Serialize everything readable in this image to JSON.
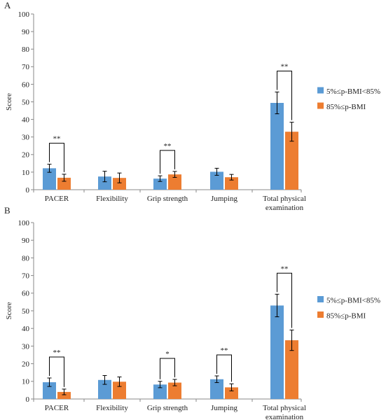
{
  "chart_data": [
    {
      "panel": "A",
      "type": "bar",
      "ylabel": "Score",
      "ylim": [
        0,
        100
      ],
      "yticks": [
        0,
        10,
        20,
        30,
        40,
        50,
        60,
        70,
        80,
        90,
        100
      ],
      "categories": [
        "PACER",
        "Flexibility",
        "Grip strength",
        "Jumping",
        "Total physical examination"
      ],
      "series": [
        {
          "name": "5%≤p-BMI<85%",
          "color": "#5b9bd5",
          "values": [
            12.2,
            7.5,
            6.3,
            10.2,
            49.4
          ],
          "errors": [
            2.3,
            3.0,
            1.6,
            2.0,
            6.2
          ]
        },
        {
          "name": "85%≤p-BMI",
          "color": "#ed7d31",
          "values": [
            6.8,
            6.7,
            8.7,
            7.1,
            33.0
          ],
          "errors": [
            2.0,
            2.8,
            1.7,
            1.6,
            5.4
          ]
        }
      ],
      "significance": [
        {
          "category": 0,
          "label": "**"
        },
        {
          "category": 2,
          "label": "**"
        },
        {
          "category": 4,
          "label": "**"
        }
      ],
      "legend_position": "right"
    },
    {
      "panel": "B",
      "type": "bar",
      "ylabel": "Score",
      "ylim": [
        0,
        100
      ],
      "yticks": [
        0,
        10,
        20,
        30,
        40,
        50,
        60,
        70,
        80,
        90,
        100
      ],
      "categories": [
        "PACER",
        "Flexibility",
        "Grip strength",
        "Jumping",
        "Total physical examination"
      ],
      "series": [
        {
          "name": "5%≤p-BMI<85%",
          "color": "#5b9bd5",
          "values": [
            9.5,
            10.8,
            8.2,
            11.2,
            53.0
          ],
          "errors": [
            2.4,
            2.5,
            1.8,
            1.9,
            6.4
          ]
        },
        {
          "name": "85%≤p-BMI",
          "color": "#ed7d31",
          "values": [
            4.0,
            9.8,
            9.3,
            6.6,
            33.3
          ],
          "errors": [
            1.6,
            2.7,
            1.8,
            2.0,
            5.8
          ]
        }
      ],
      "significance": [
        {
          "category": 0,
          "label": "**"
        },
        {
          "category": 2,
          "label": "*"
        },
        {
          "category": 3,
          "label": "**"
        },
        {
          "category": 4,
          "label": "**"
        }
      ],
      "legend_position": "right"
    }
  ]
}
